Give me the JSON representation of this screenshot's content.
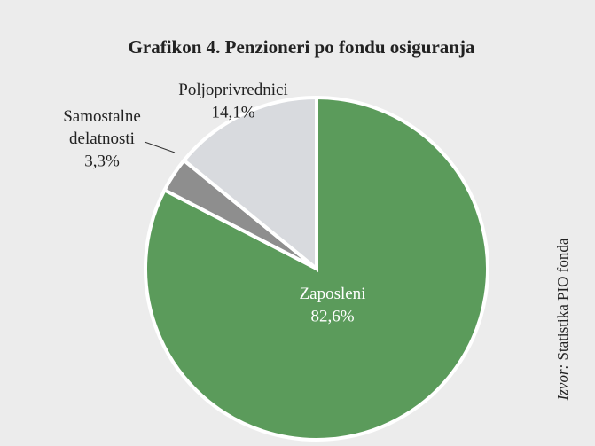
{
  "chart_data": {
    "type": "pie",
    "title": "Grafikon 4. Penzioneri po fondu osiguranja",
    "categories": [
      "Zaposleni",
      "Samostalne delatnosti",
      "Poljoprivrednici"
    ],
    "values": [
      82.6,
      3.3,
      14.1
    ],
    "value_labels": [
      "82,6%",
      "3,3%",
      "14,1%"
    ],
    "colors": [
      "#5b9b5b",
      "#8e8e8e",
      "#d8dade"
    ],
    "source_label": "Izvor:",
    "source": "Statistika PIO fonda"
  }
}
